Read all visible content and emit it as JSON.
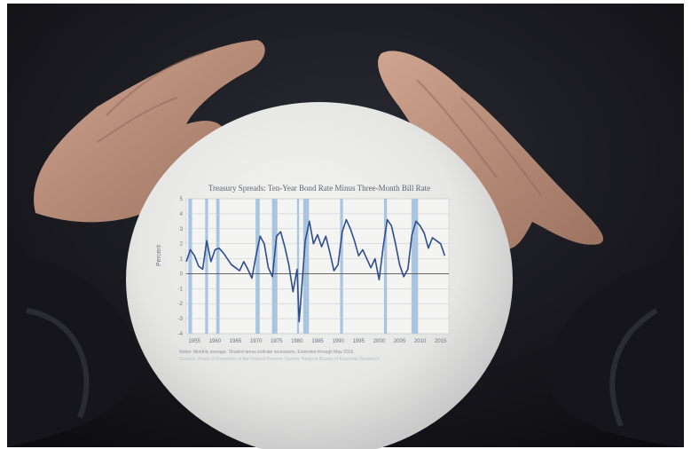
{
  "scene": {
    "description_colors": {
      "background": "#1c1c22",
      "sphere": "#e9e9e8",
      "chart_line": "#2e4d8f",
      "recession_shade": "#8fb4d8"
    }
  },
  "chart_data": {
    "type": "line",
    "title": "Treasury Spreads: Ten-Year Bond Rate Minus Three-Month Bill Rate",
    "xlabel": "",
    "ylabel": "Percent",
    "x_ticks": [
      "1955",
      "1960",
      "1965",
      "1970",
      "1975",
      "1980",
      "1985",
      "1990",
      "1995",
      "2000",
      "2005",
      "2010",
      "2015"
    ],
    "y_ticks": [
      "-4",
      "-3",
      "-2",
      "-1",
      "0",
      "1",
      "2",
      "3",
      "4",
      "5"
    ],
    "xlim": [
      1953,
      2017
    ],
    "ylim": [
      -4,
      5
    ],
    "grid": true,
    "recessions": [
      [
        1953.5,
        1954.4
      ],
      [
        1957.6,
        1958.3
      ],
      [
        1960.3,
        1961.1
      ],
      [
        1969.9,
        1970.9
      ],
      [
        1973.9,
        1975.2
      ],
      [
        1980.0,
        1980.5
      ],
      [
        1981.5,
        1982.9
      ],
      [
        1990.5,
        1991.2
      ],
      [
        2001.2,
        2001.9
      ],
      [
        2007.9,
        2009.5
      ]
    ],
    "series": [
      {
        "x": [
          1953,
          1954,
          1955,
          1956,
          1957,
          1958,
          1959,
          1960,
          1961,
          1962,
          1963,
          1964,
          1965,
          1966,
          1967,
          1968,
          1969,
          1970,
          1971,
          1972,
          1973,
          1974,
          1975,
          1976,
          1977,
          1978,
          1979,
          1980,
          1980.5,
          1981,
          1982,
          1983,
          1984,
          1985,
          1986,
          1987,
          1988,
          1989,
          1990,
          1991,
          1992,
          1993,
          1994,
          1995,
          1996,
          1997,
          1998,
          1999,
          2000,
          2001,
          2002,
          2003,
          2004,
          2005,
          2006,
          2007,
          2008,
          2009,
          2010,
          2011,
          2012,
          2013,
          2014,
          2015,
          2016
        ],
        "y": [
          0.8,
          1.6,
          1.2,
          0.5,
          0.3,
          2.2,
          0.8,
          1.6,
          1.7,
          1.4,
          1.0,
          0.6,
          0.4,
          0.2,
          0.8,
          0.3,
          -0.3,
          1.2,
          2.5,
          2.0,
          0.4,
          -0.2,
          2.5,
          2.8,
          1.8,
          0.6,
          -1.2,
          0.3,
          -3.2,
          -1.5,
          2.2,
          3.5,
          2.0,
          2.6,
          1.8,
          2.5,
          1.4,
          0.2,
          0.6,
          2.8,
          3.6,
          3.0,
          2.2,
          1.2,
          1.6,
          1.0,
          0.4,
          1.0,
          -0.4,
          1.8,
          3.6,
          3.2,
          2.0,
          0.6,
          -0.2,
          0.3,
          2.6,
          3.5,
          3.2,
          2.7,
          1.7,
          2.4,
          2.2,
          2.0,
          1.2
        ]
      }
    ],
    "notes": [
      "Notes: Monthly average. Shaded areas indicate recessions. Extended through May 2016.",
      "Sources: Board of Governors of the Federal Reserve System; National Bureau of Economic Research."
    ]
  }
}
